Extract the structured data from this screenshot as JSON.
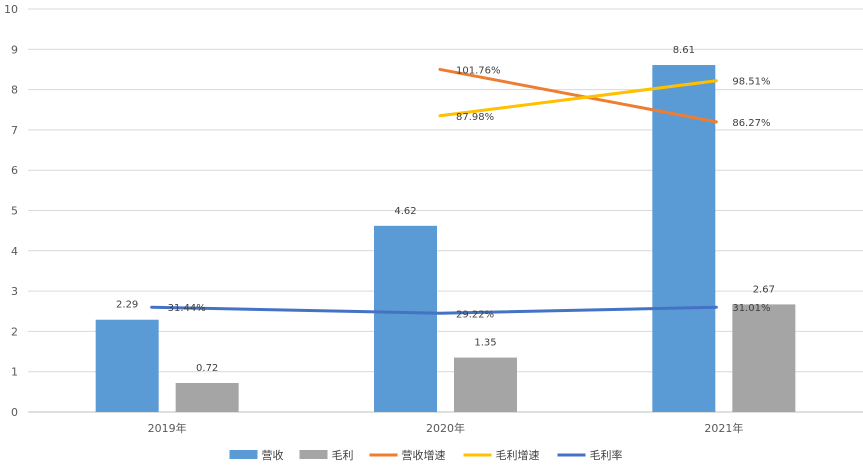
{
  "chart_data": {
    "type": "bar",
    "categories": [
      "2019年",
      "2020年",
      "2021年"
    ],
    "series": [
      {
        "name": "营收",
        "kind": "bar",
        "values": [
          2.29,
          4.62,
          8.61
        ],
        "color": "#5B9BD5",
        "labels": [
          "2.29",
          "4.62",
          "8.61"
        ]
      },
      {
        "name": "毛利",
        "kind": "bar",
        "values": [
          0.72,
          1.35,
          2.67
        ],
        "color": "#A5A5A5",
        "labels": [
          "0.72",
          "1.35",
          "2.67"
        ]
      },
      {
        "name": "营收增速",
        "kind": "line",
        "values": [
          null,
          8.5,
          7.2
        ],
        "color": "#ED7D31",
        "labels": [
          null,
          "101.76%",
          "86.27%"
        ]
      },
      {
        "name": "毛利增速",
        "kind": "line",
        "values": [
          null,
          7.35,
          8.22
        ],
        "color": "#FFC000",
        "labels": [
          null,
          "87.98%",
          "98.51%"
        ]
      },
      {
        "name": "毛利率",
        "kind": "line",
        "values": [
          2.6,
          2.45,
          2.6
        ],
        "color": "#4472C4",
        "labels": [
          "31.44%",
          "29.22%",
          "31.01%"
        ]
      }
    ],
    "yticks": [
      "0",
      "1",
      "2",
      "3",
      "4",
      "5",
      "6",
      "7",
      "8",
      "9",
      "10"
    ],
    "ylim": [
      0,
      10
    ],
    "grid": true,
    "legend": "bottom"
  }
}
